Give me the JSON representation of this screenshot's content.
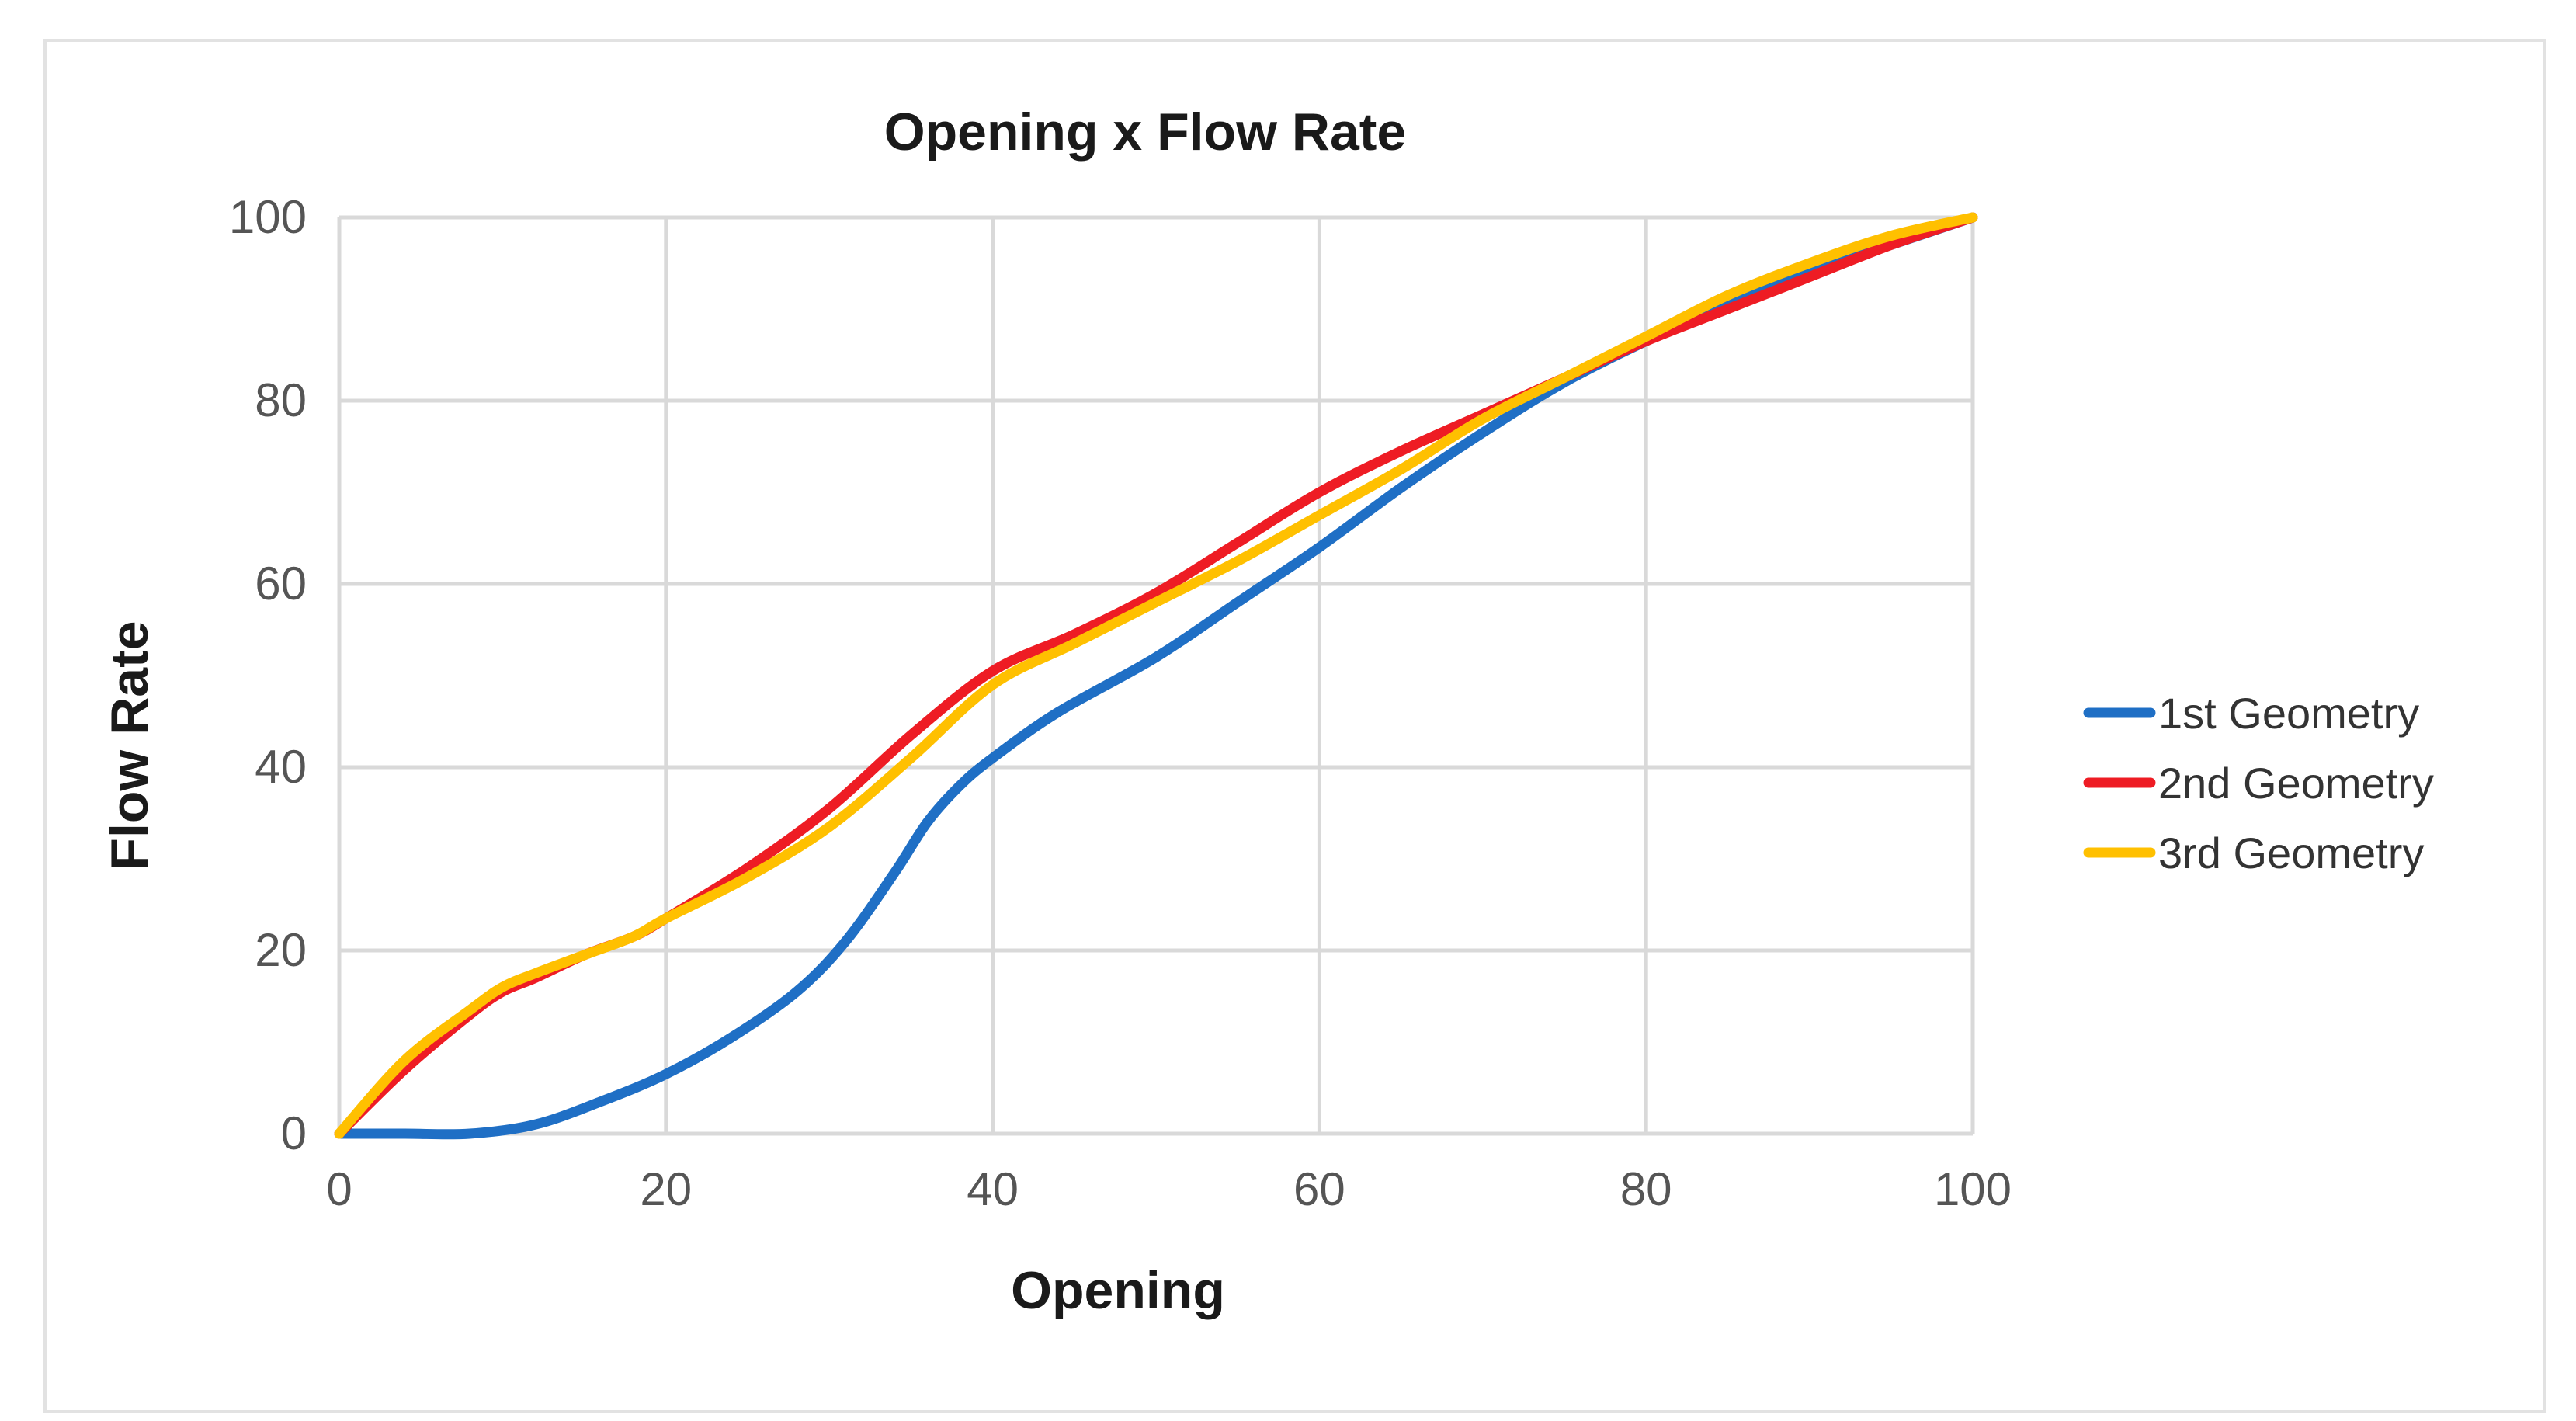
{
  "chart_data": {
    "type": "line",
    "title": "Opening x Flow Rate",
    "xlabel": "Opening",
    "ylabel": "Flow Rate",
    "xlim": [
      0,
      100
    ],
    "ylim": [
      0,
      100
    ],
    "xticks": [
      "0",
      "20",
      "40",
      "60",
      "80",
      "100"
    ],
    "yticks": [
      "0",
      "20",
      "40",
      "60",
      "80",
      "100"
    ],
    "grid": true,
    "legend_position": "right",
    "series": [
      {
        "name": "1st Geometry",
        "color": "#1f6fc5",
        "x": [
          0,
          4,
          8,
          12,
          16,
          20,
          24,
          28,
          31,
          34,
          36,
          38,
          40,
          44,
          50,
          55,
          60,
          65,
          70,
          75,
          80,
          85,
          90,
          95,
          100
        ],
        "y": [
          0,
          0,
          0,
          1,
          3.5,
          6.5,
          10.5,
          15.5,
          21,
          28.5,
          34,
          38,
          41,
          46,
          52,
          58,
          64,
          70.5,
          76.5,
          82,
          86.5,
          90.5,
          94,
          97,
          100
        ]
      },
      {
        "name": "2nd Geometry",
        "color": "#ee1c24",
        "x": [
          0,
          4,
          8,
          10,
          12,
          15,
          18,
          20,
          25,
          30,
          35,
          40,
          45,
          50,
          55,
          60,
          65,
          70,
          75,
          80,
          85,
          90,
          95,
          100
        ],
        "y": [
          0,
          7,
          13,
          15.5,
          17,
          19.5,
          21.5,
          23.5,
          29,
          35.5,
          43.5,
          50.5,
          54.5,
          59,
          64.5,
          70,
          74.5,
          78.5,
          82.5,
          86.5,
          90,
          93.5,
          97,
          100
        ]
      },
      {
        "name": "3rd Geometry",
        "color": "#ffc000",
        "x": [
          0,
          4,
          8,
          10,
          12,
          15,
          18,
          20,
          25,
          30,
          35,
          40,
          45,
          50,
          55,
          60,
          65,
          70,
          75,
          80,
          85,
          90,
          95,
          100
        ],
        "y": [
          0,
          8,
          13.5,
          16,
          17.5,
          19.5,
          21.5,
          23.5,
          28,
          33.5,
          41,
          49,
          53.5,
          58,
          62.5,
          67.5,
          72.5,
          78,
          82.5,
          87,
          91.5,
          95,
          98,
          100
        ]
      }
    ]
  }
}
